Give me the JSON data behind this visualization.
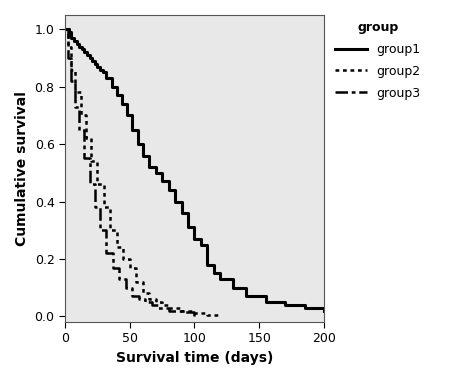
{
  "xlabel": "Survival time (days)",
  "ylabel": "Cumulative survival",
  "xlim": [
    0,
    200
  ],
  "ylim": [
    -0.02,
    1.05
  ],
  "xticks": [
    0,
    50,
    100,
    150,
    200
  ],
  "yticks": [
    0.0,
    0.2,
    0.4,
    0.6,
    0.8,
    1.0
  ],
  "fig_background": "#ffffff",
  "plot_background": "#e8e8e8",
  "legend_title": "group",
  "group1_x": [
    0,
    1,
    3,
    5,
    7,
    9,
    11,
    13,
    15,
    17,
    19,
    21,
    23,
    25,
    27,
    29,
    32,
    36,
    40,
    44,
    48,
    52,
    56,
    60,
    65,
    70,
    75,
    80,
    85,
    90,
    95,
    100,
    105,
    110,
    115,
    120,
    130,
    140,
    155,
    170,
    185,
    200
  ],
  "group1_y": [
    1.0,
    1.0,
    0.99,
    0.97,
    0.96,
    0.95,
    0.94,
    0.93,
    0.92,
    0.91,
    0.9,
    0.89,
    0.88,
    0.87,
    0.86,
    0.85,
    0.83,
    0.8,
    0.77,
    0.74,
    0.7,
    0.65,
    0.6,
    0.56,
    0.52,
    0.5,
    0.47,
    0.44,
    0.4,
    0.36,
    0.31,
    0.27,
    0.25,
    0.18,
    0.15,
    0.13,
    0.1,
    0.07,
    0.05,
    0.04,
    0.03,
    0.02
  ],
  "group2_x": [
    0,
    2,
    5,
    8,
    12,
    16,
    20,
    25,
    30,
    35,
    40,
    45,
    50,
    55,
    60,
    65,
    70,
    75,
    80,
    90,
    100,
    110,
    120
  ],
  "group2_y": [
    1.0,
    0.94,
    0.86,
    0.78,
    0.7,
    0.62,
    0.54,
    0.46,
    0.38,
    0.3,
    0.24,
    0.2,
    0.17,
    0.12,
    0.08,
    0.06,
    0.05,
    0.04,
    0.03,
    0.02,
    0.01,
    0.005,
    0.0
  ],
  "group3_x": [
    0,
    2,
    5,
    8,
    11,
    15,
    19,
    23,
    27,
    32,
    37,
    42,
    47,
    52,
    57,
    62,
    67,
    72,
    80,
    90,
    100
  ],
  "group3_y": [
    1.0,
    0.9,
    0.82,
    0.73,
    0.65,
    0.55,
    0.46,
    0.38,
    0.3,
    0.22,
    0.17,
    0.13,
    0.1,
    0.07,
    0.06,
    0.05,
    0.04,
    0.03,
    0.02,
    0.015,
    0.0
  ]
}
